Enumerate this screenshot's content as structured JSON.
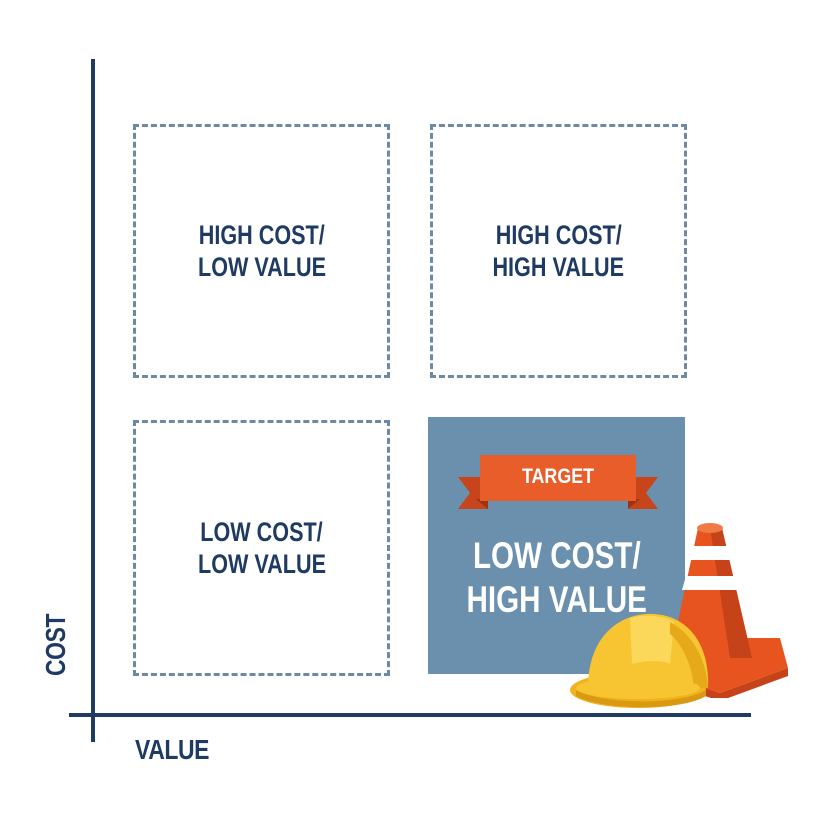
{
  "axes": {
    "x_label": "VALUE",
    "y_label": "COST"
  },
  "quadrants": {
    "top_left": {
      "line1": "HIGH COST/",
      "line2": "LOW VALUE"
    },
    "top_right": {
      "line1": "HIGH COST/",
      "line2": "HIGH VALUE"
    },
    "bottom_left": {
      "line1": "LOW COST/",
      "line2": "LOW VALUE"
    },
    "bottom_right": {
      "line1": "LOW COST/",
      "line2": "HIGH VALUE",
      "badge": "TARGET"
    }
  },
  "icons": [
    "traffic-cone-icon",
    "hard-hat-icon",
    "ribbon-banner-icon"
  ],
  "colors": {
    "axis": "#1f3b63",
    "dashed_border": "#6c8aa3",
    "target_fill": "#6a90ae",
    "ribbon": "#e85d2a",
    "hard_hat": "#f7c531",
    "cone": "#e8541f"
  }
}
